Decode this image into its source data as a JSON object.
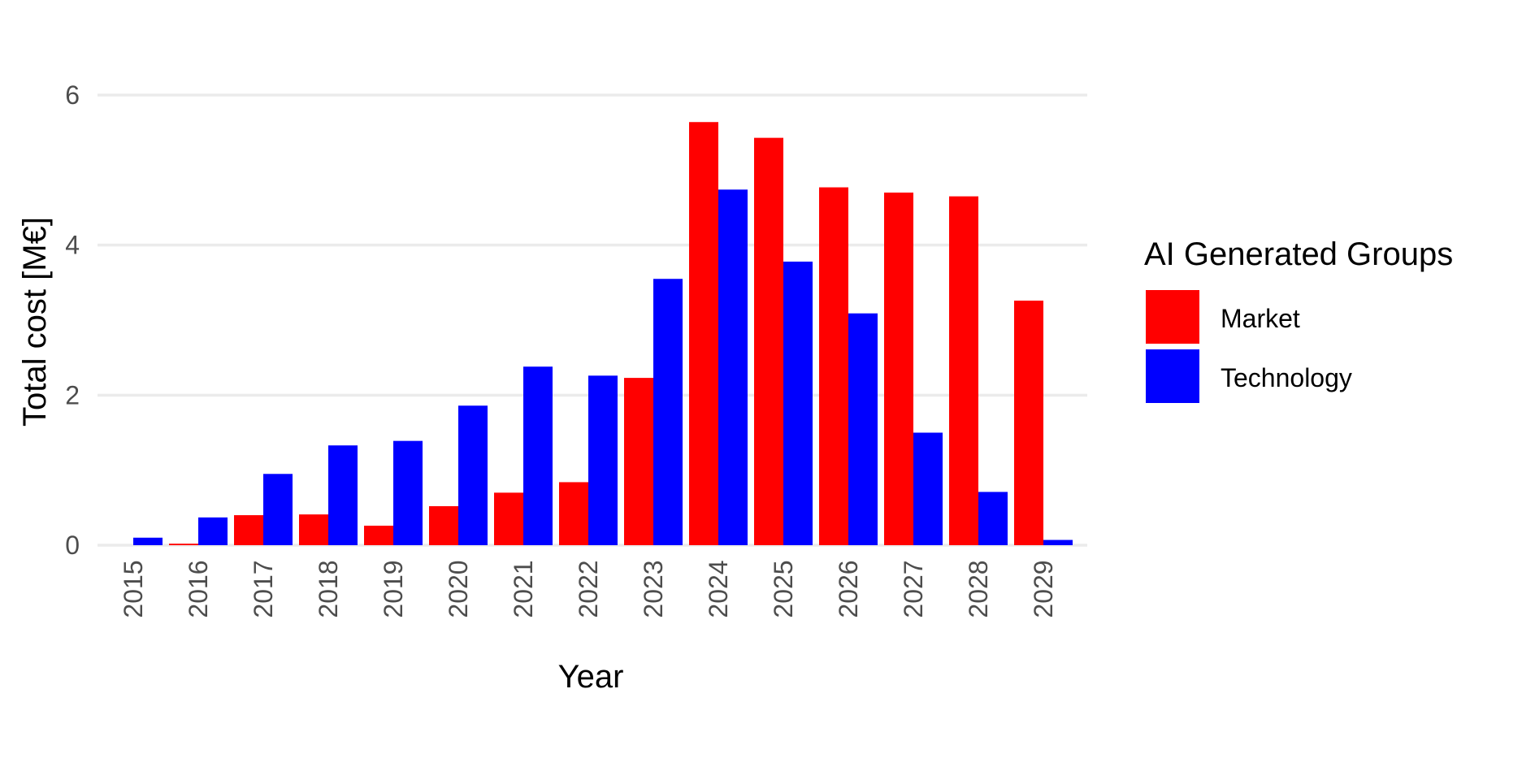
{
  "chart_data": {
    "type": "bar",
    "xlabel": "Year",
    "ylabel": "Total cost [M€]",
    "ylim": [
      0,
      6.5
    ],
    "yticks": [
      0,
      2,
      4,
      6
    ],
    "grid": true,
    "legend": {
      "title": "AI Generated Groups",
      "placement": "right"
    },
    "categories": [
      "2015",
      "2016",
      "2017",
      "2018",
      "2019",
      "2020",
      "2021",
      "2022",
      "2023",
      "2024",
      "2025",
      "2026",
      "2027",
      "2028",
      "2029"
    ],
    "series": [
      {
        "name": "Market",
        "color": "#ff0000",
        "values": [
          0,
          0.02,
          0.4,
          0.41,
          0.26,
          0.52,
          0.7,
          0.84,
          2.23,
          5.64,
          5.43,
          4.77,
          4.7,
          4.65,
          3.26
        ]
      },
      {
        "name": "Technology",
        "color": "#0000ff",
        "values": [
          0.1,
          0.37,
          0.95,
          1.33,
          1.39,
          1.86,
          2.38,
          2.26,
          3.55,
          4.74,
          3.78,
          3.09,
          1.5,
          0.71,
          0.07
        ]
      }
    ]
  }
}
